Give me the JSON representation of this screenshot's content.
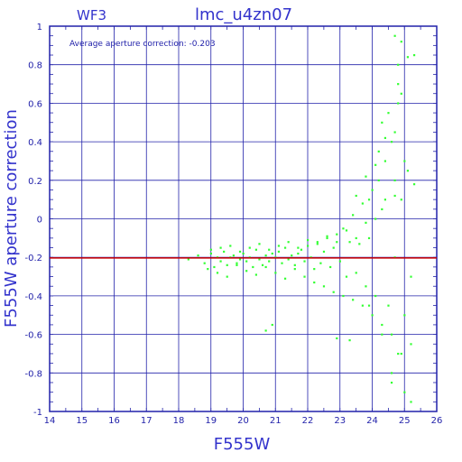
{
  "chart_data": {
    "type": "scatter",
    "panel": "WF3",
    "title": "lmc_u4zn07",
    "xlabel": "F555W",
    "ylabel": "F555W aperture correction",
    "annotation": "Average aperture correction: -0.203",
    "xlim": [
      14,
      26
    ],
    "ylim": [
      -1,
      1
    ],
    "x_ticks": [
      "14",
      "15",
      "16",
      "17",
      "18",
      "19",
      "20",
      "21",
      "22",
      "23",
      "24",
      "25",
      "26"
    ],
    "y_ticks": [
      "-1",
      "-0.8",
      "-0.6",
      "-0.4",
      "-0.2",
      "0",
      "0.2",
      "0.4",
      "0.6",
      "0.8",
      "1"
    ],
    "grid": true,
    "reference_line": {
      "y": -0.203,
      "color": "#cc0000"
    },
    "colors": {
      "points": "#33ff33",
      "axes": "#2222aa",
      "text": "#3333cc",
      "line": "#cc0000"
    },
    "series": [
      {
        "x": [
          18.3,
          18.6,
          18.8,
          19.0,
          19.1,
          19.2,
          19.3,
          19.4,
          19.5,
          19.6,
          19.7,
          19.8,
          19.9,
          20.0,
          20.1,
          20.2,
          20.3,
          20.4,
          20.5,
          20.6,
          20.7,
          20.8,
          20.9,
          21.0,
          21.1,
          21.2,
          21.3,
          21.4,
          21.5,
          21.6,
          21.7,
          21.8,
          21.9,
          22.0,
          22.1,
          22.2,
          22.3,
          22.4,
          22.5,
          22.6,
          22.7,
          22.8,
          22.9,
          23.0,
          23.1,
          23.2,
          23.3,
          23.4,
          23.5,
          23.6,
          23.7,
          23.8,
          23.9,
          24.0,
          24.1,
          24.2,
          24.3,
          24.4,
          24.5,
          24.6,
          24.7,
          24.8,
          24.9,
          25.0,
          25.1,
          25.2,
          25.3,
          18.9,
          19.2,
          19.5,
          19.8,
          20.1,
          20.4,
          20.7,
          21.0,
          21.3,
          21.6,
          21.9,
          22.2,
          22.5,
          22.8,
          23.1,
          23.4,
          23.7,
          24.0,
          24.3,
          24.6,
          24.9,
          25.2,
          19.0,
          19.3,
          19.6,
          19.9,
          20.2,
          20.5,
          20.8,
          21.1,
          21.4,
          21.7,
          22.0,
          22.3,
          22.6,
          22.9,
          23.2,
          23.5,
          23.8,
          24.1,
          24.4,
          24.7,
          25.0,
          20.7,
          20.9,
          22.9,
          23.3,
          23.9,
          24.2,
          24.5,
          24.7,
          24.8,
          24.9,
          25.1,
          25.3,
          24.3,
          24.6,
          24.8,
          25.0,
          25.2,
          23.8,
          24.1,
          24.4,
          24.7,
          24.9,
          24.6,
          24.8,
          23.5,
          23.9,
          24.3,
          24.7
        ],
        "y": [
          -0.21,
          -0.19,
          -0.23,
          -0.18,
          -0.25,
          -0.2,
          -0.22,
          -0.17,
          -0.24,
          -0.2,
          -0.19,
          -0.23,
          -0.21,
          -0.18,
          -0.22,
          -0.2,
          -0.25,
          -0.16,
          -0.21,
          -0.24,
          -0.19,
          -0.22,
          -0.18,
          -0.2,
          -0.17,
          -0.23,
          -0.15,
          -0.21,
          -0.19,
          -0.24,
          -0.18,
          -0.16,
          -0.22,
          -0.14,
          -0.2,
          -0.26,
          -0.12,
          -0.23,
          -0.17,
          -0.1,
          -0.25,
          -0.15,
          -0.08,
          -0.22,
          -0.05,
          -0.3,
          -0.12,
          0.02,
          -0.28,
          -0.13,
          0.08,
          -0.35,
          -0.1,
          0.15,
          -0.4,
          0.2,
          0.05,
          0.3,
          -0.45,
          0.4,
          -0.2,
          0.6,
          0.1,
          -0.5,
          0.25,
          -0.3,
          0.18,
          -0.26,
          -0.28,
          -0.3,
          -0.24,
          -0.27,
          -0.29,
          -0.25,
          -0.28,
          -0.31,
          -0.26,
          -0.3,
          -0.33,
          -0.35,
          -0.38,
          -0.4,
          -0.42,
          -0.45,
          -0.5,
          -0.55,
          -0.6,
          -0.7,
          -0.65,
          -0.16,
          -0.15,
          -0.14,
          -0.17,
          -0.15,
          -0.13,
          -0.16,
          -0.14,
          -0.12,
          -0.15,
          -0.11,
          -0.13,
          -0.09,
          -0.12,
          -0.06,
          -0.1,
          -0.02,
          0.0,
          0.1,
          0.2,
          0.3,
          -0.58,
          -0.55,
          -0.62,
          -0.63,
          -0.45,
          0.35,
          0.55,
          0.95,
          0.7,
          0.92,
          0.84,
          0.85,
          0.5,
          -0.8,
          0.8,
          -0.9,
          -0.95,
          0.22,
          0.28,
          0.42,
          0.12,
          0.65,
          -0.85,
          -0.7,
          0.12,
          0.1,
          -0.6,
          0.45
        ]
      }
    ]
  }
}
